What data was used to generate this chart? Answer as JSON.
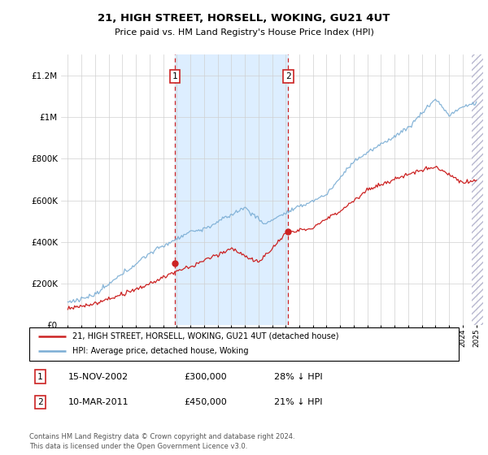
{
  "title": "21, HIGH STREET, HORSELL, WOKING, GU21 4UT",
  "subtitle": "Price paid vs. HM Land Registry's House Price Index (HPI)",
  "footer": "Contains HM Land Registry data © Crown copyright and database right 2024.\nThis data is licensed under the Open Government Licence v3.0.",
  "legend_line1": "21, HIGH STREET, HORSELL, WOKING, GU21 4UT (detached house)",
  "legend_line2": "HPI: Average price, detached house, Woking",
  "sale1_date": "15-NOV-2002",
  "sale1_price": "£300,000",
  "sale1_hpi": "28% ↓ HPI",
  "sale1_year": 2002.88,
  "sale1_value": 300000,
  "sale2_date": "10-MAR-2011",
  "sale2_price": "£450,000",
  "sale2_hpi": "21% ↓ HPI",
  "sale2_year": 2011.19,
  "sale2_value": 450000,
  "hpi_color": "#7aadd4",
  "price_color": "#cc2222",
  "shade_color": "#ddeeff",
  "ylim": [
    0,
    1300000
  ],
  "yticks": [
    0,
    200000,
    400000,
    600000,
    800000,
    1000000,
    1200000
  ],
  "hatch_color": "#bbbbcc",
  "xlim_left": 1994.5,
  "xlim_right": 2025.5
}
